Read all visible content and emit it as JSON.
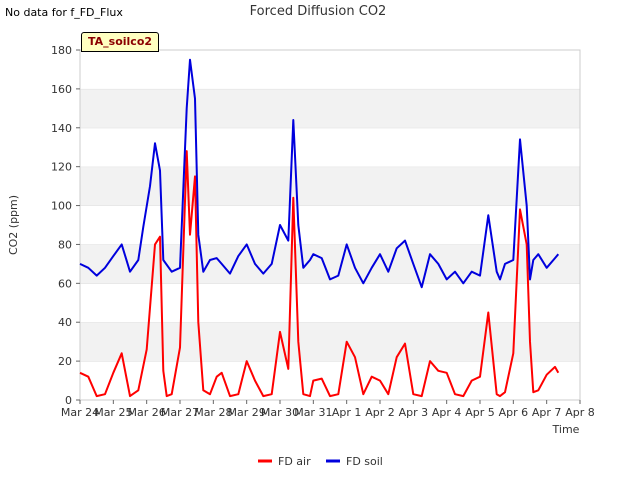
{
  "corner_note": "No data for f_FD_Flux",
  "tag_label": "TA_soilco2",
  "chart_data": {
    "type": "line",
    "title": "Forced Diffusion CO2",
    "xlabel": "Time",
    "ylabel": "CO2 (ppm)",
    "ylim": [
      0,
      180
    ],
    "yticks": [
      0,
      20,
      40,
      60,
      80,
      100,
      120,
      140,
      160,
      180
    ],
    "xlim": [
      0,
      15
    ],
    "xtick_labels": [
      "Mar 24",
      "Mar 25",
      "Mar 26",
      "Mar 27",
      "Mar 28",
      "Mar 29",
      "Mar 30",
      "Mar 31",
      "Apr 1",
      "Apr 2",
      "Apr 3",
      "Apr 4",
      "Apr 5",
      "Apr 6",
      "Apr 7",
      "Apr 8"
    ],
    "legend": "bottom-center",
    "grid": "horizontal bands",
    "series": [
      {
        "name": "FD air",
        "color": "#ff0000",
        "x": [
          0.0,
          0.25,
          0.5,
          0.75,
          1.0,
          1.25,
          1.5,
          1.75,
          2.0,
          2.25,
          2.4,
          2.5,
          2.6,
          2.75,
          3.0,
          3.2,
          3.3,
          3.45,
          3.55,
          3.7,
          3.9,
          4.1,
          4.25,
          4.5,
          4.75,
          5.0,
          5.25,
          5.5,
          5.75,
          6.0,
          6.25,
          6.4,
          6.55,
          6.7,
          6.9,
          7.0,
          7.25,
          7.5,
          7.75,
          8.0,
          8.25,
          8.5,
          8.75,
          9.0,
          9.25,
          9.5,
          9.75,
          10.0,
          10.25,
          10.5,
          10.75,
          11.0,
          11.25,
          11.5,
          11.75,
          12.0,
          12.25,
          12.5,
          12.6,
          12.75,
          13.0,
          13.2,
          13.4,
          13.5,
          13.6,
          13.75,
          14.0,
          14.25,
          14.35
        ],
        "values": [
          14,
          12,
          2,
          3,
          14,
          24,
          2,
          5,
          26,
          80,
          84,
          15,
          2,
          3,
          27,
          128,
          85,
          115,
          40,
          5,
          3,
          12,
          14,
          2,
          3,
          20,
          10,
          2,
          3,
          35,
          16,
          104,
          30,
          3,
          2,
          10,
          11,
          2,
          3,
          30,
          22,
          3,
          12,
          10,
          3,
          22,
          29,
          3,
          2,
          20,
          15,
          14,
          3,
          2,
          10,
          12,
          45,
          3,
          2,
          4,
          24,
          98,
          80,
          30,
          4,
          5,
          13,
          17,
          14
        ]
      },
      {
        "name": "FD soil",
        "color": "#0000dd",
        "x": [
          0.0,
          0.25,
          0.5,
          0.75,
          1.0,
          1.25,
          1.5,
          1.75,
          1.9,
          2.1,
          2.25,
          2.4,
          2.5,
          2.75,
          3.0,
          3.2,
          3.3,
          3.45,
          3.55,
          3.7,
          3.9,
          4.1,
          4.25,
          4.5,
          4.75,
          5.0,
          5.25,
          5.5,
          5.75,
          6.0,
          6.25,
          6.4,
          6.55,
          6.7,
          6.9,
          7.0,
          7.25,
          7.5,
          7.75,
          8.0,
          8.25,
          8.5,
          8.75,
          9.0,
          9.25,
          9.5,
          9.75,
          10.0,
          10.25,
          10.5,
          10.75,
          11.0,
          11.25,
          11.5,
          11.75,
          12.0,
          12.25,
          12.5,
          12.6,
          12.75,
          13.0,
          13.2,
          13.4,
          13.5,
          13.6,
          13.75,
          14.0,
          14.25,
          14.35
        ],
        "values": [
          70,
          68,
          64,
          68,
          74,
          80,
          66,
          72,
          89,
          110,
          132,
          118,
          72,
          66,
          68,
          150,
          175,
          155,
          85,
          66,
          72,
          73,
          70,
          65,
          74,
          80,
          70,
          65,
          70,
          90,
          82,
          144,
          90,
          68,
          72,
          75,
          73,
          62,
          64,
          80,
          68,
          60,
          68,
          75,
          66,
          78,
          82,
          70,
          58,
          75,
          70,
          62,
          66,
          60,
          66,
          64,
          95,
          66,
          62,
          70,
          72,
          134,
          100,
          62,
          72,
          75,
          68,
          73,
          75
        ]
      }
    ]
  }
}
